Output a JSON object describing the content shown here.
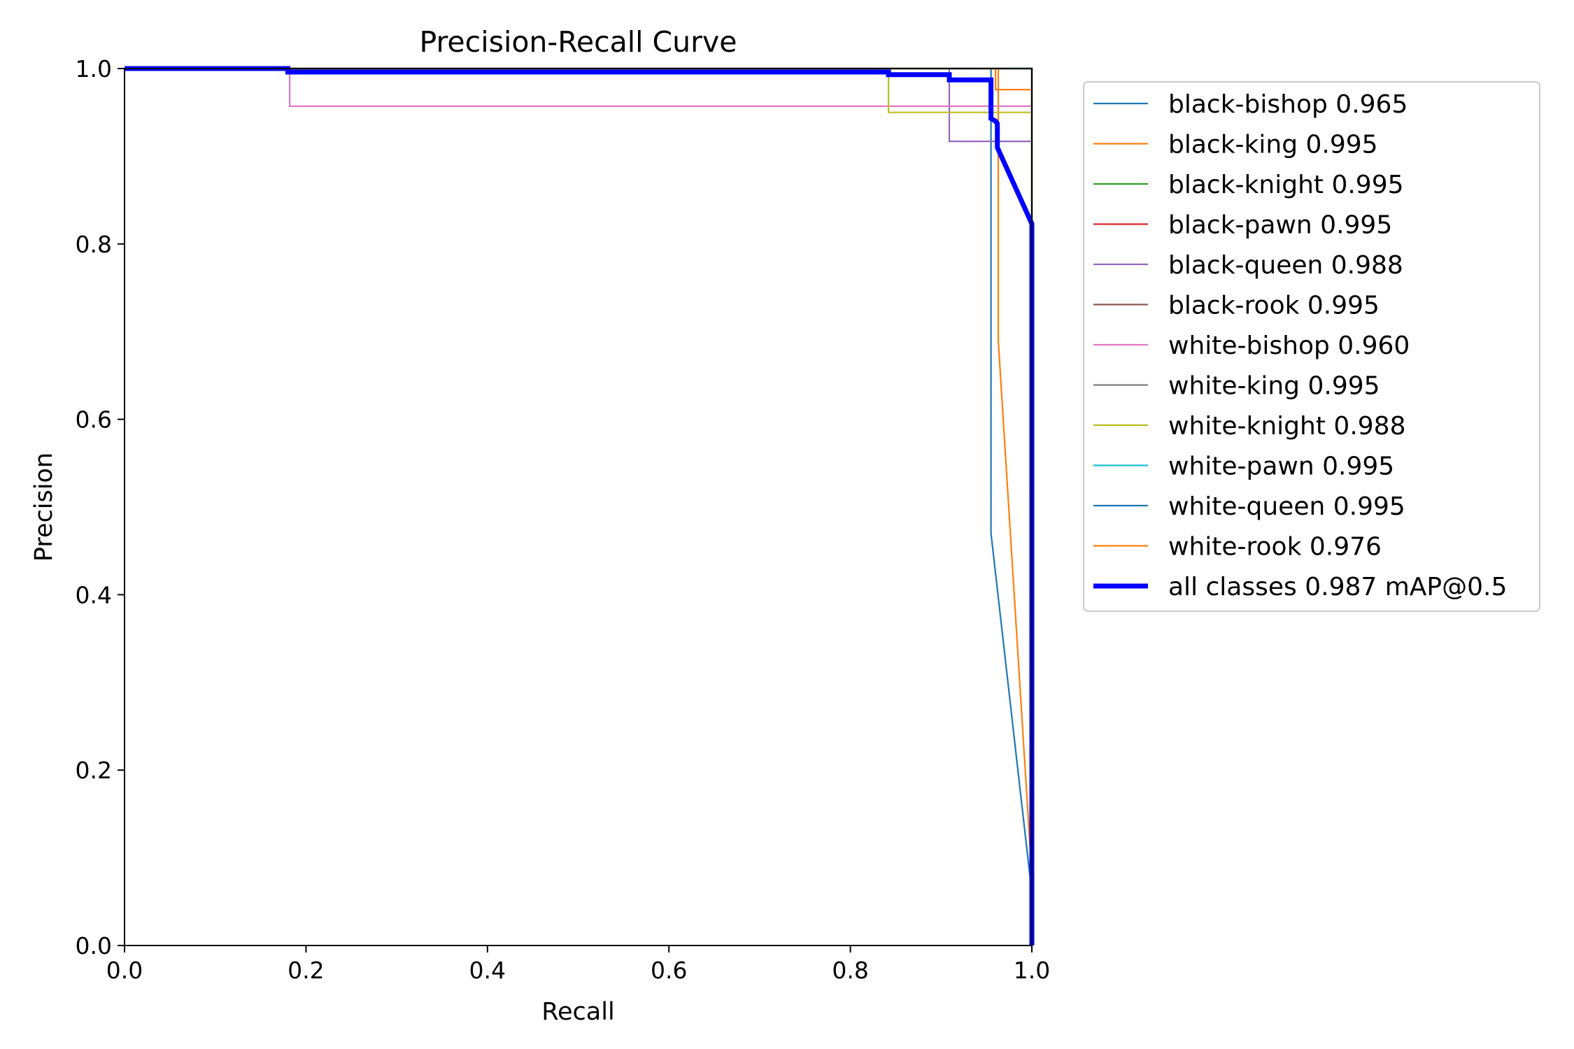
{
  "chart_data": {
    "type": "line",
    "title": "Precision-Recall Curve",
    "xlabel": "Recall",
    "ylabel": "Precision",
    "xlim": [
      0,
      1
    ],
    "ylim": [
      0,
      1
    ],
    "xticks": [
      "0.0",
      "0.2",
      "0.4",
      "0.6",
      "0.8",
      "1.0"
    ],
    "yticks": [
      "0.0",
      "0.2",
      "0.4",
      "0.6",
      "0.8",
      "1.0"
    ],
    "grid": false,
    "legend_position": "outside-right-top",
    "series": [
      {
        "name": "black-bishop 0.965",
        "color": "#1f77b4",
        "width": "thin",
        "x": [
          0,
          0.955,
          0.955,
          0.955,
          1.0,
          1.0
        ],
        "y": [
          1,
          1,
          0.995,
          0.47,
          0.06,
          0
        ]
      },
      {
        "name": "black-king 0.995",
        "color": "#ff7f0e",
        "width": "thin",
        "x": [
          0,
          0.955,
          0.963,
          0.963,
          1.0,
          1.0
        ],
        "y": [
          1,
          1,
          1,
          0.69,
          0.08,
          0
        ]
      },
      {
        "name": "black-knight 0.995",
        "color": "#2ca02c",
        "width": "thin",
        "x": [
          0,
          1.0,
          1.0
        ],
        "y": [
          1,
          1,
          0
        ]
      },
      {
        "name": "black-pawn 0.995",
        "color": "#d62728",
        "width": "thin",
        "x": [
          0,
          1.0,
          1.0
        ],
        "y": [
          1,
          1,
          0
        ]
      },
      {
        "name": "black-queen 0.988",
        "color": "#9467bd",
        "width": "thin",
        "x": [
          0,
          0.909,
          0.909,
          1.0,
          1.0
        ],
        "y": [
          1,
          1,
          0.917,
          0.917,
          0
        ]
      },
      {
        "name": "black-rook 0.995",
        "color": "#8c564b",
        "width": "thin",
        "x": [
          0,
          1.0,
          1.0
        ],
        "y": [
          1,
          1,
          0
        ]
      },
      {
        "name": "white-bishop 0.960",
        "color": "#e377c2",
        "width": "thin",
        "x": [
          0,
          0.182,
          0.182,
          1.0,
          1.0
        ],
        "y": [
          1,
          1,
          0.957,
          0.957,
          0
        ]
      },
      {
        "name": "white-king 0.995",
        "color": "#7f7f7f",
        "width": "thin",
        "x": [
          0,
          1.0,
          1.0
        ],
        "y": [
          1,
          1,
          0
        ]
      },
      {
        "name": "white-knight 0.988",
        "color": "#bcbd22",
        "width": "thin",
        "x": [
          0,
          0.842,
          0.842,
          1.0,
          1.0
        ],
        "y": [
          1,
          1,
          0.95,
          0.95,
          0
        ]
      },
      {
        "name": "white-pawn 0.995",
        "color": "#17becf",
        "width": "thin",
        "x": [
          0,
          1.0,
          1.0
        ],
        "y": [
          1,
          1,
          0
        ]
      },
      {
        "name": "white-queen 0.995",
        "color": "#1f77b4",
        "width": "thin",
        "x": [
          0,
          1.0,
          1.0
        ],
        "y": [
          1,
          1,
          0
        ]
      },
      {
        "name": "white-rook 0.976",
        "color": "#ff7f0e",
        "width": "thin",
        "x": [
          0,
          0.96,
          0.96,
          1.0,
          1.0
        ],
        "y": [
          1,
          1,
          0.976,
          0.976,
          0
        ]
      },
      {
        "name": "all classes 0.987 mAP@0.5",
        "color": "#0000ff",
        "width": "thick",
        "x": [
          0,
          0.18,
          0.18,
          0.842,
          0.842,
          0.909,
          0.909,
          0.955,
          0.955,
          0.96,
          0.962,
          0.962,
          1.0,
          1.0,
          1.0
        ],
        "y": [
          1,
          1,
          0.996,
          0.996,
          0.993,
          0.993,
          0.987,
          0.987,
          0.943,
          0.94,
          0.937,
          0.91,
          0.823,
          0.2,
          0
        ]
      }
    ]
  }
}
